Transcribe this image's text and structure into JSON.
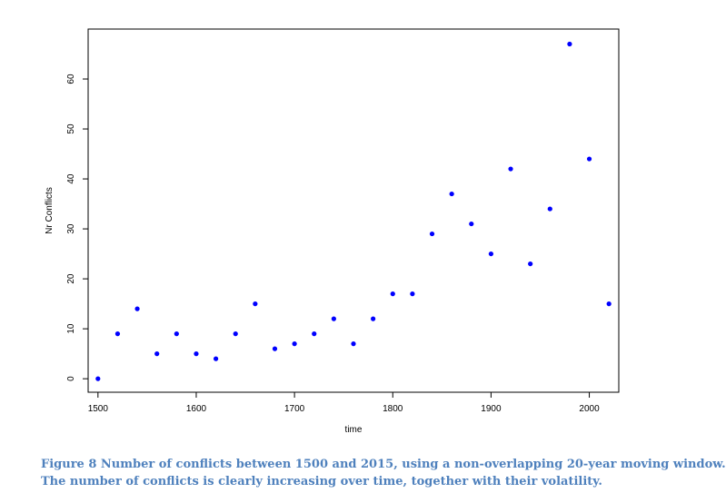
{
  "chart_data": {
    "type": "scatter",
    "xlabel": "time",
    "ylabel": "Nr Conflicts",
    "xlim": [
      1490,
      2030
    ],
    "ylim": [
      -2.7,
      70
    ],
    "x_ticks": [
      1500,
      1600,
      1700,
      1800,
      1900,
      2000
    ],
    "y_ticks": [
      0,
      10,
      20,
      30,
      40,
      50,
      60
    ],
    "grid": false,
    "marker_color": "#0000ff",
    "x": [
      1500,
      1520,
      1540,
      1560,
      1580,
      1600,
      1620,
      1640,
      1660,
      1680,
      1700,
      1720,
      1740,
      1760,
      1780,
      1800,
      1820,
      1840,
      1860,
      1880,
      1900,
      1920,
      1940,
      1960,
      1980,
      2000,
      2020
    ],
    "y": [
      0,
      9,
      14,
      5,
      9,
      5,
      4,
      9,
      15,
      6,
      7,
      9,
      12,
      7,
      12,
      17,
      17,
      29,
      37,
      31,
      25,
      42,
      23,
      34,
      67,
      44,
      15
    ]
  },
  "caption": {
    "line1": "Figure 8 Number of conflicts between 1500 and 2015, using a non-overlapping 20-year moving window.",
    "line2": "The number of conflicts is clearly increasing over time, together with their volatility."
  }
}
